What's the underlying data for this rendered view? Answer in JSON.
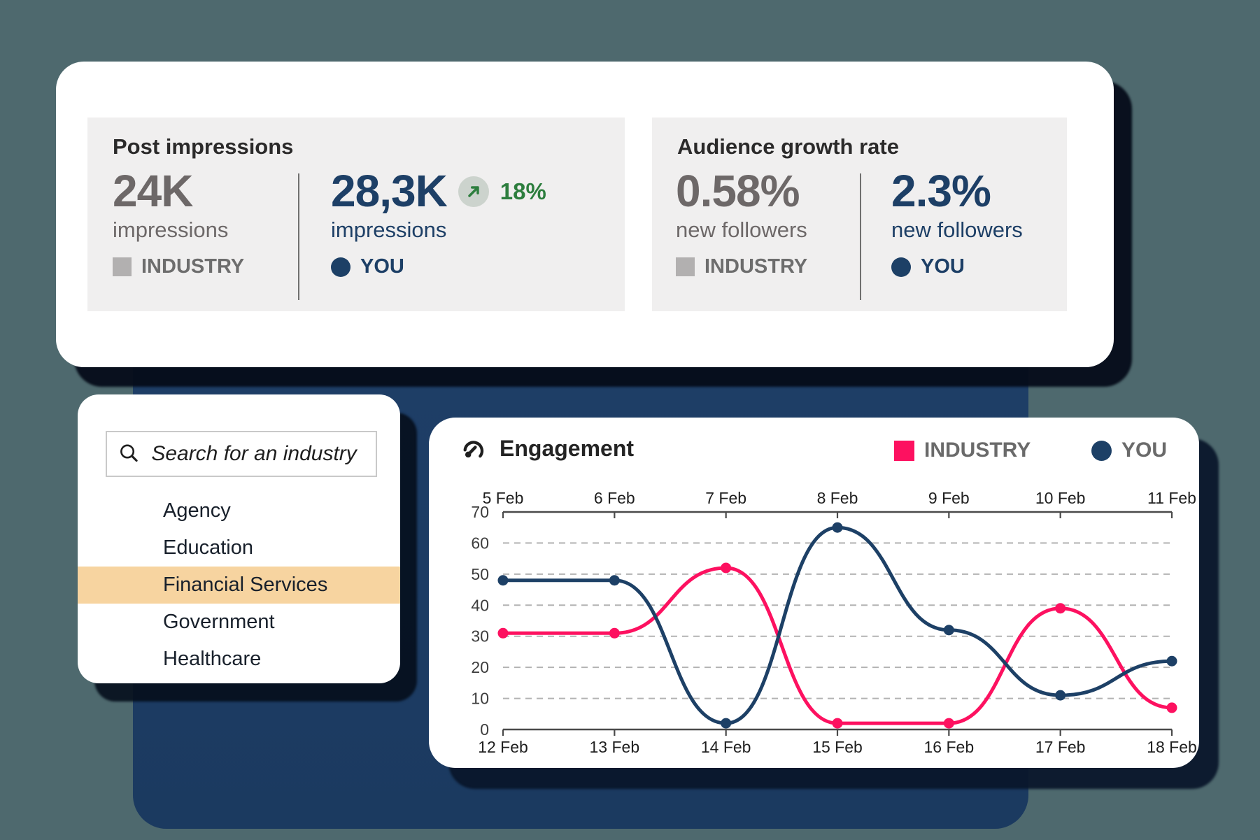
{
  "colors": {
    "background": "#4e696e",
    "panel": "#1b3a60",
    "accent_pink": "#fd1160",
    "accent_navy": "#1d4066",
    "stat_gray": "#6d6868",
    "green": "#2d7e3e",
    "highlight": "#f7d4a0"
  },
  "stats": {
    "post": {
      "title": "Post impressions",
      "industry": {
        "value": "24K",
        "label": "impressions",
        "tag": "INDUSTRY"
      },
      "you": {
        "value": "28,3K",
        "delta": "18%",
        "label": "impressions",
        "tag": "YOU"
      }
    },
    "growth": {
      "title": "Audience growth rate",
      "industry": {
        "value": "0.58%",
        "label": "new followers",
        "tag": "INDUSTRY"
      },
      "you": {
        "value": "2.3%",
        "label": "new followers",
        "tag": "YOU"
      }
    }
  },
  "search": {
    "placeholder": "Search for an industry",
    "items": [
      "Agency",
      "Education",
      "Financial Services",
      "Government",
      "Healthcare"
    ],
    "selected_item": "Financial Services",
    "selected_index": 2
  },
  "chart": {
    "title": "Engagement",
    "legend": [
      {
        "label": "INDUSTRY",
        "shape": "square",
        "color": "#fd1160"
      },
      {
        "label": "YOU",
        "shape": "circle",
        "color": "#1d4066"
      }
    ]
  },
  "chart_data": {
    "type": "line",
    "title": "Engagement",
    "x_labels_top": [
      "5 Feb",
      "6 Feb",
      "7 Feb",
      "8 Feb",
      "9 Feb",
      "10 Feb",
      "11 Feb"
    ],
    "x_labels_bottom": [
      "12 Feb",
      "13 Feb",
      "14 Feb",
      "15 Feb",
      "16 Feb",
      "17 Feb",
      "18 Feb"
    ],
    "ylim": [
      0,
      70
    ],
    "yticks": [
      0,
      10,
      20,
      30,
      40,
      50,
      60,
      70
    ],
    "grid": "dashed-horizontal",
    "legend_position": "top-right",
    "series": [
      {
        "name": "INDUSTRY",
        "color": "#fd1160",
        "values": [
          31,
          31,
          52,
          2,
          2,
          39,
          7
        ]
      },
      {
        "name": "YOU",
        "color": "#1d4066",
        "values": [
          48,
          48,
          2,
          65,
          32,
          11,
          22
        ]
      }
    ]
  }
}
